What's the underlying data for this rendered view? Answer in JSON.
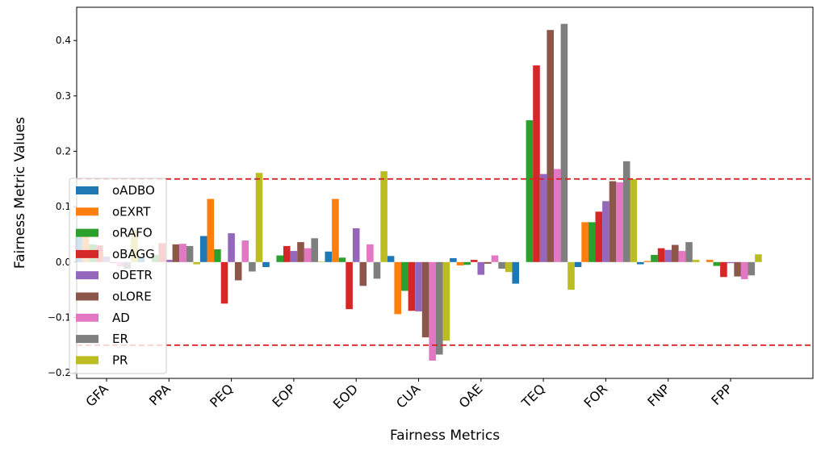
{
  "chart_data": {
    "type": "bar",
    "xlabel": "Fairness Metrics",
    "ylabel": "Fairness Metric Values",
    "categories": [
      "GFA",
      "PPA",
      "PEQ",
      "EOP",
      "EOD",
      "CUA",
      "OAE",
      "TEQ",
      "FOR",
      "FNP",
      "FPP"
    ],
    "ylim": [
      -0.21,
      0.46
    ],
    "yticks": [
      -0.2,
      -0.1,
      0.0,
      0.1,
      0.2,
      0.3,
      0.4
    ],
    "ytick_labels": [
      "−0.2",
      "−0.1",
      "0.0",
      "0.1",
      "0.2",
      "0.3",
      "0.4"
    ],
    "thresholds": [
      0.15,
      -0.15
    ],
    "threshold_color": "#d62728",
    "legend_position": "lower-left",
    "series": [
      {
        "name": "oADBO",
        "color": "#1f77b4",
        "values": [
          0.051,
          0.009,
          0.047,
          -0.009,
          0.019,
          0.011,
          0.007,
          -0.039,
          -0.009,
          -0.004,
          0.0
        ]
      },
      {
        "name": "oEXRT",
        "color": "#ff7f0e",
        "values": [
          0.053,
          0.0,
          0.114,
          0.0,
          0.114,
          -0.094,
          -0.006,
          0.0,
          0.072,
          0.002,
          0.004
        ]
      },
      {
        "name": "oRAFO",
        "color": "#2ca02c",
        "values": [
          0.032,
          0.013,
          0.023,
          0.012,
          0.008,
          -0.052,
          -0.005,
          0.256,
          0.072,
          0.013,
          -0.007
        ]
      },
      {
        "name": "oBAGG",
        "color": "#d62728",
        "values": [
          0.03,
          0.034,
          -0.075,
          0.029,
          -0.085,
          -0.088,
          0.004,
          0.355,
          0.091,
          0.025,
          -0.027
        ]
      },
      {
        "name": "oDETR",
        "color": "#9467bd",
        "values": [
          0.01,
          0.004,
          0.052,
          0.02,
          0.061,
          -0.089,
          -0.023,
          0.159,
          0.11,
          0.022,
          -0.002
        ]
      },
      {
        "name": "oLORE",
        "color": "#8c564b",
        "values": [
          -0.002,
          0.032,
          -0.033,
          0.036,
          -0.043,
          -0.136,
          -0.003,
          0.419,
          0.146,
          0.031,
          -0.026
        ]
      },
      {
        "name": "AD",
        "color": "#e377c2",
        "values": [
          -0.008,
          0.033,
          0.039,
          0.025,
          0.032,
          -0.178,
          0.012,
          0.168,
          0.144,
          0.02,
          -0.031
        ]
      },
      {
        "name": "ER",
        "color": "#7f7f7f",
        "values": [
          -0.012,
          0.029,
          -0.017,
          0.043,
          -0.03,
          -0.167,
          -0.012,
          0.43,
          0.182,
          0.036,
          -0.024
        ]
      },
      {
        "name": "PR",
        "color": "#bcbd22",
        "values": [
          0.058,
          -0.004,
          0.161,
          0.001,
          0.164,
          -0.142,
          -0.018,
          -0.05,
          0.15,
          0.004,
          0.014
        ]
      }
    ]
  }
}
